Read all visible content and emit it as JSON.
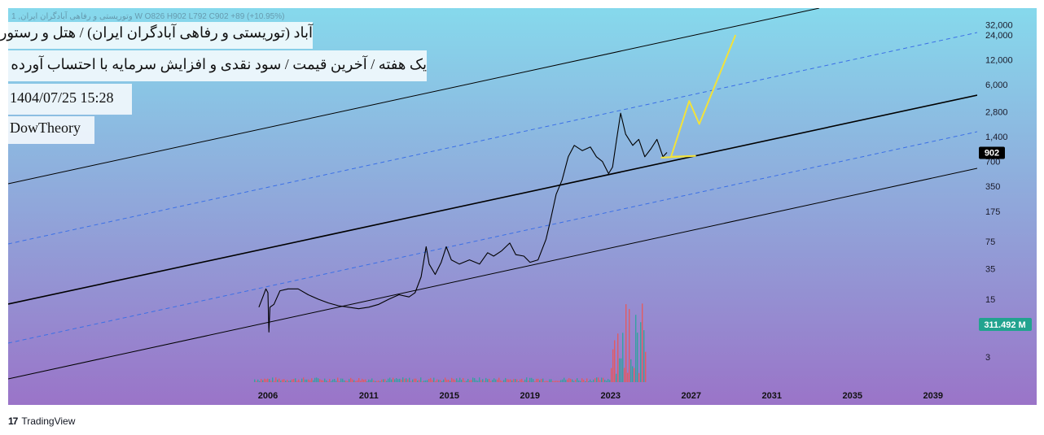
{
  "header": {
    "ticker_line": "1 ,وتوریستی و رفاهی آبادگران ایران W  O826  H902  L792  C902  +89 (+10.95%)",
    "title": "آباد (توریستی و رفاهی آبادگران ایران) / هتل و رستوران",
    "subtitle": "یک هفته / آخرین قیمت / سود نقدی و افزایش سرمایه با احتساب آورده",
    "datetime": "1404/07/25 15:28",
    "author": "DowTheory"
  },
  "brand": {
    "name": "TradingView",
    "logo_text": "17"
  },
  "colors": {
    "bg_top": "#86d9ec",
    "bg_bottom": "#9a74c8",
    "channel_line": "#000000",
    "channel_mid_dashed": "#3b6fe6",
    "projection": "#f2e23a",
    "price_badge": "#000000",
    "volume_badge": "#22a38f",
    "volume_up": "#26a69a",
    "volume_down": "#ef5350"
  },
  "chart_data": {
    "type": "line",
    "scale": "log",
    "y_ticks": [
      "32,000",
      "24,000",
      "12,000",
      "6,000",
      "2,800",
      "1,400",
      "700",
      "350",
      "175",
      "75",
      "35",
      "15",
      "3"
    ],
    "x_ticks": [
      "2006",
      "2011",
      "2015",
      "2019",
      "2023",
      "2027",
      "2031",
      "2035",
      "2039"
    ],
    "last_price": {
      "label": "902",
      "value": 902
    },
    "volume_badge": {
      "label": "311.492 M"
    },
    "series": [
      {
        "kind": "price",
        "points": [
          [
            2005.55,
            12
          ],
          [
            2005.75,
            16
          ],
          [
            2005.9,
            20
          ],
          [
            2006.0,
            18
          ],
          [
            2006.05,
            6
          ],
          [
            2006.1,
            12
          ],
          [
            2006.3,
            13
          ],
          [
            2006.6,
            19
          ],
          [
            2007.0,
            20
          ],
          [
            2007.5,
            20
          ],
          [
            2008.0,
            17
          ],
          [
            2008.5,
            15
          ],
          [
            2009.0,
            13.5
          ],
          [
            2009.5,
            12.5
          ],
          [
            2010.0,
            12
          ],
          [
            2010.5,
            11.5
          ],
          [
            2011.0,
            12
          ],
          [
            2011.5,
            13
          ],
          [
            2012.0,
            15
          ],
          [
            2012.5,
            17
          ],
          [
            2013.0,
            16
          ],
          [
            2013.3,
            18
          ],
          [
            2013.6,
            28
          ],
          [
            2013.85,
            65
          ],
          [
            2014.0,
            40
          ],
          [
            2014.3,
            30
          ],
          [
            2014.6,
            42
          ],
          [
            2014.85,
            65
          ],
          [
            2015.1,
            45
          ],
          [
            2015.5,
            40
          ],
          [
            2016.0,
            45
          ],
          [
            2016.5,
            40
          ],
          [
            2016.9,
            55
          ],
          [
            2017.2,
            50
          ],
          [
            2017.6,
            58
          ],
          [
            2018.0,
            72
          ],
          [
            2018.3,
            52
          ],
          [
            2018.7,
            50
          ],
          [
            2019.0,
            42
          ],
          [
            2019.4,
            45
          ],
          [
            2019.8,
            80
          ],
          [
            2020.0,
            130
          ],
          [
            2020.3,
            280
          ],
          [
            2020.6,
            420
          ],
          [
            2020.9,
            800
          ],
          [
            2021.2,
            1100
          ],
          [
            2021.6,
            950
          ],
          [
            2022.0,
            1050
          ],
          [
            2022.3,
            800
          ],
          [
            2022.6,
            700
          ],
          [
            2022.9,
            500
          ],
          [
            2023.1,
            600
          ],
          [
            2023.3,
            1300
          ],
          [
            2023.5,
            2700
          ],
          [
            2023.75,
            1500
          ],
          [
            2024.1,
            1100
          ],
          [
            2024.4,
            1300
          ],
          [
            2024.7,
            800
          ],
          [
            2025.0,
            1000
          ],
          [
            2025.3,
            1300
          ],
          [
            2025.6,
            800
          ],
          [
            2025.8,
            902
          ]
        ]
      },
      {
        "kind": "projection",
        "points": [
          [
            2025.5,
            780
          ],
          [
            2027.2,
            820
          ],
          [
            2026.0,
            800
          ],
          [
            2026.9,
            3800
          ],
          [
            2027.4,
            2000
          ],
          [
            2029.2,
            24000
          ]
        ]
      }
    ]
  }
}
